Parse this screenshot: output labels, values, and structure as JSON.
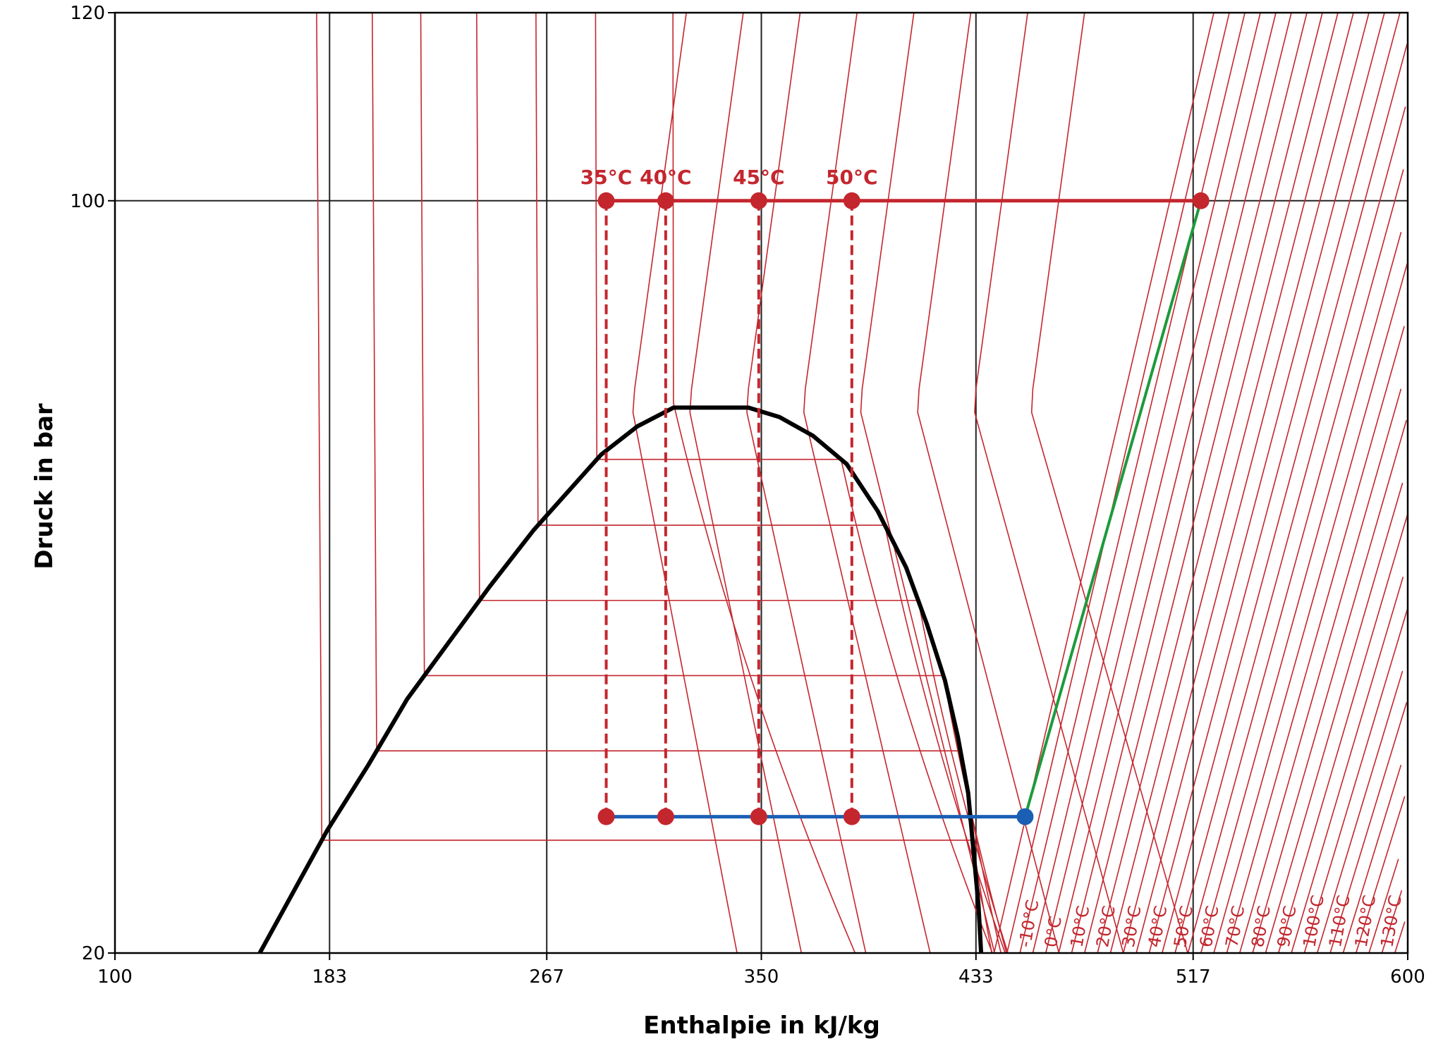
{
  "chart_data": {
    "type": "line",
    "title": "",
    "xlabel": "Enthalpie in kJ/kg",
    "ylabel": "Druck in bar",
    "xlim": [
      100,
      600
    ],
    "ylim": [
      20,
      120
    ],
    "x_ticks": [
      100,
      183,
      267,
      350,
      433,
      517,
      600
    ],
    "y_ticks": [
      20,
      100,
      120
    ],
    "grid": true,
    "saturation_dome": {
      "color": "#000000",
      "points": [
        [
          156,
          20
        ],
        [
          166,
          25
        ],
        [
          182,
          33
        ],
        [
          198,
          40
        ],
        [
          213,
          47
        ],
        [
          229,
          53
        ],
        [
          245,
          59
        ],
        [
          262,
          65
        ],
        [
          275,
          69
        ],
        [
          288,
          73
        ],
        [
          302,
          76
        ],
        [
          316,
          78
        ],
        [
          330,
          78
        ],
        [
          345,
          78
        ],
        [
          357,
          77
        ],
        [
          370,
          75
        ],
        [
          383,
          72
        ],
        [
          395,
          67
        ],
        [
          406,
          61
        ],
        [
          414,
          55
        ],
        [
          421,
          49
        ],
        [
          426,
          43
        ],
        [
          430,
          37
        ],
        [
          432,
          31
        ],
        [
          434,
          25
        ],
        [
          435,
          20
        ]
      ]
    },
    "isotherms": {
      "color": "#c4262e",
      "two_phase_pressures": [
        32,
        41.5,
        49.5,
        57.5,
        65.5,
        72.5,
        78.5
      ],
      "supercritical_labels": [
        "35°C",
        "40°C",
        "45°C",
        "50°C"
      ],
      "superheated_labels": [
        "-10°C",
        "0°C",
        "10°C",
        "20°C",
        "30°C",
        "40°C",
        "50°C",
        "60°C",
        "70°C",
        "80°C",
        "90°C",
        "100°C",
        "110°C",
        "120°C",
        "130°C"
      ],
      "label_positions_h": [
        454,
        464,
        474,
        484,
        494,
        504,
        514,
        524,
        534,
        544,
        554,
        564,
        574,
        584,
        594
      ]
    },
    "cycle": {
      "low_pressure": 34.5,
      "high_pressure": 100,
      "evaporator_end_h": 452,
      "compressor_end_h": 520,
      "throttle_h": [
        290,
        313,
        349,
        385
      ],
      "throttle_labels": [
        "35°C",
        "40°C",
        "45°C",
        "50°C"
      ],
      "red_color": "#c4262e",
      "blue_color": "#1a5fb4",
      "green_color": "#1e9a3c"
    }
  }
}
